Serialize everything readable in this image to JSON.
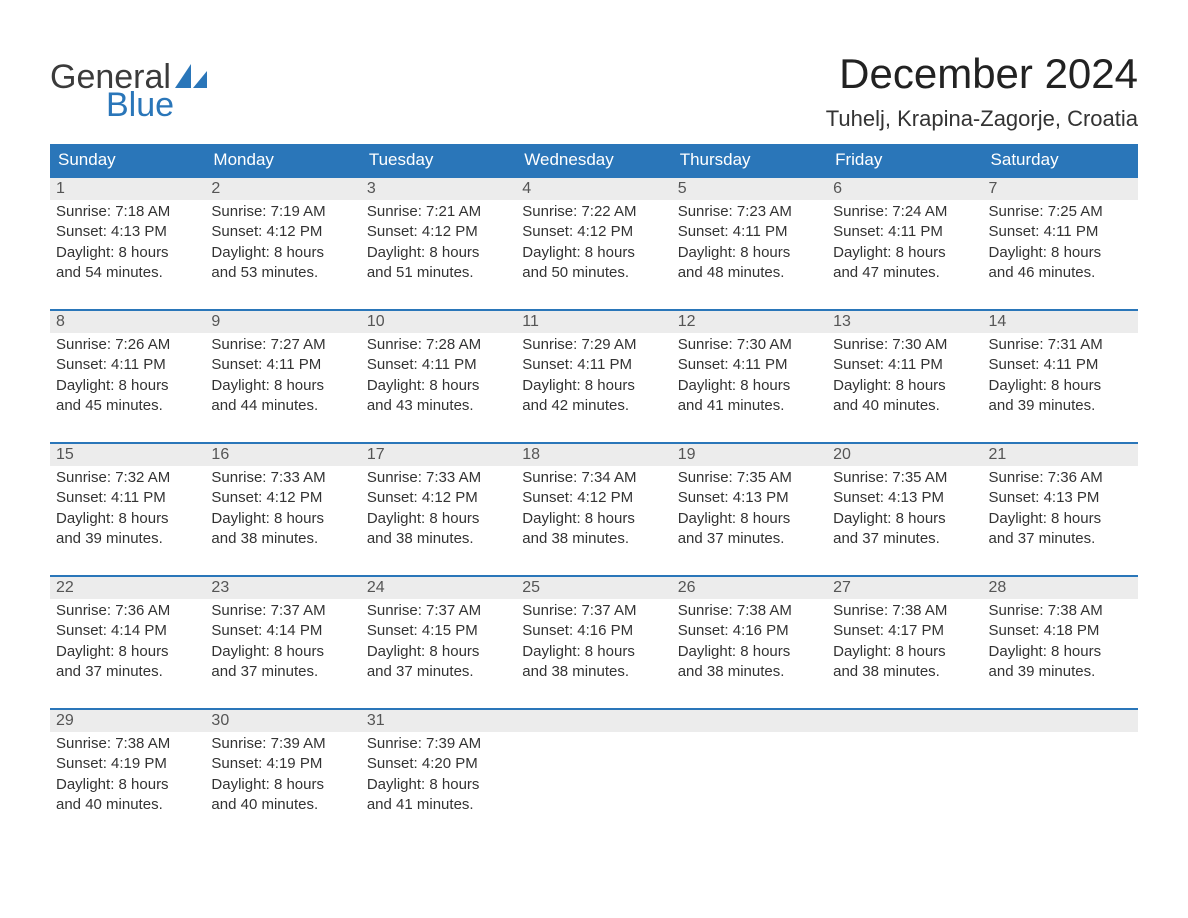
{
  "brand": {
    "word1": "General",
    "word2": "Blue"
  },
  "header": {
    "title": "December 2024",
    "subtitle": "Tuhelj, Krapina-Zagorje, Croatia"
  },
  "colors": {
    "primary": "#2a76b9",
    "header_bg": "#2a76b9",
    "header_text": "#ffffff",
    "daynum_bg": "#ececec",
    "daynum_text": "#555555",
    "body_text": "#333333",
    "page_bg": "#ffffff"
  },
  "typography": {
    "title_fontsize": 42,
    "subtitle_fontsize": 22,
    "dayheader_fontsize": 17,
    "daynum_fontsize": 16,
    "body_fontsize": 15
  },
  "calendar": {
    "type": "table",
    "columns": [
      "Sunday",
      "Monday",
      "Tuesday",
      "Wednesday",
      "Thursday",
      "Friday",
      "Saturday"
    ],
    "weeks": [
      [
        {
          "n": "1",
          "sr": "Sunrise: 7:18 AM",
          "ss": "Sunset: 4:13 PM",
          "d1": "Daylight: 8 hours",
          "d2": "and 54 minutes."
        },
        {
          "n": "2",
          "sr": "Sunrise: 7:19 AM",
          "ss": "Sunset: 4:12 PM",
          "d1": "Daylight: 8 hours",
          "d2": "and 53 minutes."
        },
        {
          "n": "3",
          "sr": "Sunrise: 7:21 AM",
          "ss": "Sunset: 4:12 PM",
          "d1": "Daylight: 8 hours",
          "d2": "and 51 minutes."
        },
        {
          "n": "4",
          "sr": "Sunrise: 7:22 AM",
          "ss": "Sunset: 4:12 PM",
          "d1": "Daylight: 8 hours",
          "d2": "and 50 minutes."
        },
        {
          "n": "5",
          "sr": "Sunrise: 7:23 AM",
          "ss": "Sunset: 4:11 PM",
          "d1": "Daylight: 8 hours",
          "d2": "and 48 minutes."
        },
        {
          "n": "6",
          "sr": "Sunrise: 7:24 AM",
          "ss": "Sunset: 4:11 PM",
          "d1": "Daylight: 8 hours",
          "d2": "and 47 minutes."
        },
        {
          "n": "7",
          "sr": "Sunrise: 7:25 AM",
          "ss": "Sunset: 4:11 PM",
          "d1": "Daylight: 8 hours",
          "d2": "and 46 minutes."
        }
      ],
      [
        {
          "n": "8",
          "sr": "Sunrise: 7:26 AM",
          "ss": "Sunset: 4:11 PM",
          "d1": "Daylight: 8 hours",
          "d2": "and 45 minutes."
        },
        {
          "n": "9",
          "sr": "Sunrise: 7:27 AM",
          "ss": "Sunset: 4:11 PM",
          "d1": "Daylight: 8 hours",
          "d2": "and 44 minutes."
        },
        {
          "n": "10",
          "sr": "Sunrise: 7:28 AM",
          "ss": "Sunset: 4:11 PM",
          "d1": "Daylight: 8 hours",
          "d2": "and 43 minutes."
        },
        {
          "n": "11",
          "sr": "Sunrise: 7:29 AM",
          "ss": "Sunset: 4:11 PM",
          "d1": "Daylight: 8 hours",
          "d2": "and 42 minutes."
        },
        {
          "n": "12",
          "sr": "Sunrise: 7:30 AM",
          "ss": "Sunset: 4:11 PM",
          "d1": "Daylight: 8 hours",
          "d2": "and 41 minutes."
        },
        {
          "n": "13",
          "sr": "Sunrise: 7:30 AM",
          "ss": "Sunset: 4:11 PM",
          "d1": "Daylight: 8 hours",
          "d2": "and 40 minutes."
        },
        {
          "n": "14",
          "sr": "Sunrise: 7:31 AM",
          "ss": "Sunset: 4:11 PM",
          "d1": "Daylight: 8 hours",
          "d2": "and 39 minutes."
        }
      ],
      [
        {
          "n": "15",
          "sr": "Sunrise: 7:32 AM",
          "ss": "Sunset: 4:11 PM",
          "d1": "Daylight: 8 hours",
          "d2": "and 39 minutes."
        },
        {
          "n": "16",
          "sr": "Sunrise: 7:33 AM",
          "ss": "Sunset: 4:12 PM",
          "d1": "Daylight: 8 hours",
          "d2": "and 38 minutes."
        },
        {
          "n": "17",
          "sr": "Sunrise: 7:33 AM",
          "ss": "Sunset: 4:12 PM",
          "d1": "Daylight: 8 hours",
          "d2": "and 38 minutes."
        },
        {
          "n": "18",
          "sr": "Sunrise: 7:34 AM",
          "ss": "Sunset: 4:12 PM",
          "d1": "Daylight: 8 hours",
          "d2": "and 38 minutes."
        },
        {
          "n": "19",
          "sr": "Sunrise: 7:35 AM",
          "ss": "Sunset: 4:13 PM",
          "d1": "Daylight: 8 hours",
          "d2": "and 37 minutes."
        },
        {
          "n": "20",
          "sr": "Sunrise: 7:35 AM",
          "ss": "Sunset: 4:13 PM",
          "d1": "Daylight: 8 hours",
          "d2": "and 37 minutes."
        },
        {
          "n": "21",
          "sr": "Sunrise: 7:36 AM",
          "ss": "Sunset: 4:13 PM",
          "d1": "Daylight: 8 hours",
          "d2": "and 37 minutes."
        }
      ],
      [
        {
          "n": "22",
          "sr": "Sunrise: 7:36 AM",
          "ss": "Sunset: 4:14 PM",
          "d1": "Daylight: 8 hours",
          "d2": "and 37 minutes."
        },
        {
          "n": "23",
          "sr": "Sunrise: 7:37 AM",
          "ss": "Sunset: 4:14 PM",
          "d1": "Daylight: 8 hours",
          "d2": "and 37 minutes."
        },
        {
          "n": "24",
          "sr": "Sunrise: 7:37 AM",
          "ss": "Sunset: 4:15 PM",
          "d1": "Daylight: 8 hours",
          "d2": "and 37 minutes."
        },
        {
          "n": "25",
          "sr": "Sunrise: 7:37 AM",
          "ss": "Sunset: 4:16 PM",
          "d1": "Daylight: 8 hours",
          "d2": "and 38 minutes."
        },
        {
          "n": "26",
          "sr": "Sunrise: 7:38 AM",
          "ss": "Sunset: 4:16 PM",
          "d1": "Daylight: 8 hours",
          "d2": "and 38 minutes."
        },
        {
          "n": "27",
          "sr": "Sunrise: 7:38 AM",
          "ss": "Sunset: 4:17 PM",
          "d1": "Daylight: 8 hours",
          "d2": "and 38 minutes."
        },
        {
          "n": "28",
          "sr": "Sunrise: 7:38 AM",
          "ss": "Sunset: 4:18 PM",
          "d1": "Daylight: 8 hours",
          "d2": "and 39 minutes."
        }
      ],
      [
        {
          "n": "29",
          "sr": "Sunrise: 7:38 AM",
          "ss": "Sunset: 4:19 PM",
          "d1": "Daylight: 8 hours",
          "d2": "and 40 minutes."
        },
        {
          "n": "30",
          "sr": "Sunrise: 7:39 AM",
          "ss": "Sunset: 4:19 PM",
          "d1": "Daylight: 8 hours",
          "d2": "and 40 minutes."
        },
        {
          "n": "31",
          "sr": "Sunrise: 7:39 AM",
          "ss": "Sunset: 4:20 PM",
          "d1": "Daylight: 8 hours",
          "d2": "and 41 minutes."
        },
        {
          "n": "",
          "sr": "",
          "ss": "",
          "d1": "",
          "d2": ""
        },
        {
          "n": "",
          "sr": "",
          "ss": "",
          "d1": "",
          "d2": ""
        },
        {
          "n": "",
          "sr": "",
          "ss": "",
          "d1": "",
          "d2": ""
        },
        {
          "n": "",
          "sr": "",
          "ss": "",
          "d1": "",
          "d2": ""
        }
      ]
    ]
  }
}
